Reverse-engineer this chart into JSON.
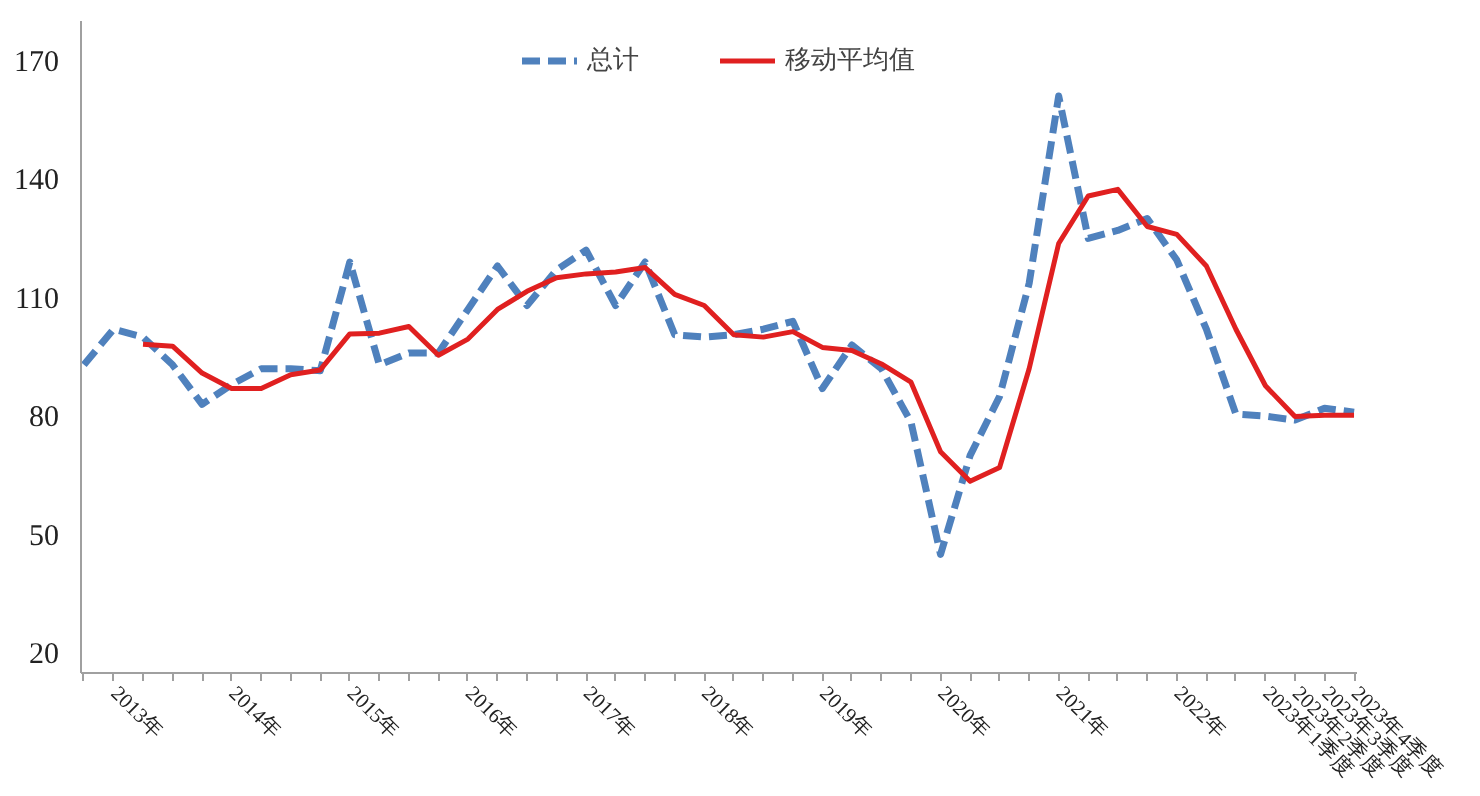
{
  "chart_data": {
    "type": "line",
    "categories": [
      null,
      "2013年",
      null,
      null,
      null,
      "2014年",
      null,
      null,
      null,
      "2015年",
      null,
      null,
      null,
      "2016年",
      null,
      null,
      null,
      "2017年",
      null,
      null,
      null,
      "2018年",
      null,
      null,
      null,
      "2019年",
      null,
      null,
      null,
      "2020年",
      null,
      null,
      null,
      "2021年",
      null,
      null,
      null,
      "2022年",
      null,
      null,
      "2023年1季度",
      "2023年2季度",
      "2023年3季度",
      "2023年4季度"
    ],
    "series": [
      {
        "name": "总计",
        "color": "#4f81bd",
        "line_style": "dashed",
        "values": [
          93,
          102,
          100,
          93,
          83,
          88,
          92,
          92,
          91.5,
          119,
          93,
          96,
          96,
          107,
          118,
          108,
          117,
          122,
          108,
          119,
          100.6,
          100,
          100.6,
          102,
          104,
          87,
          98,
          92,
          78.5,
          45,
          70,
          85,
          113.6,
          161,
          125,
          127,
          130,
          119.5,
          102,
          80.5,
          80,
          79,
          82,
          81
        ]
      },
      {
        "name": "移动平均值",
        "color": "#e02020",
        "line_style": "solid",
        "values": [
          null,
          null,
          98.2,
          97.7,
          90.9,
          87,
          87,
          90.5,
          91.7,
          100.8,
          101,
          102.7,
          95.4,
          99.5,
          107,
          111.6,
          115,
          116,
          116.5,
          117.6,
          110.8,
          108,
          100.6,
          100,
          101.4,
          97.4,
          96.6,
          93.2,
          88.6,
          71,
          63.5,
          67,
          92,
          123.7,
          135.7,
          137.4,
          128,
          126,
          118,
          102,
          87.7,
          79.9,
          80.2,
          80.2
        ]
      }
    ],
    "ylim": [
      15,
      180
    ],
    "yticks": [
      20,
      50,
      80,
      110,
      140,
      170
    ],
    "grid": false,
    "legend": "top",
    "marker": "none"
  }
}
